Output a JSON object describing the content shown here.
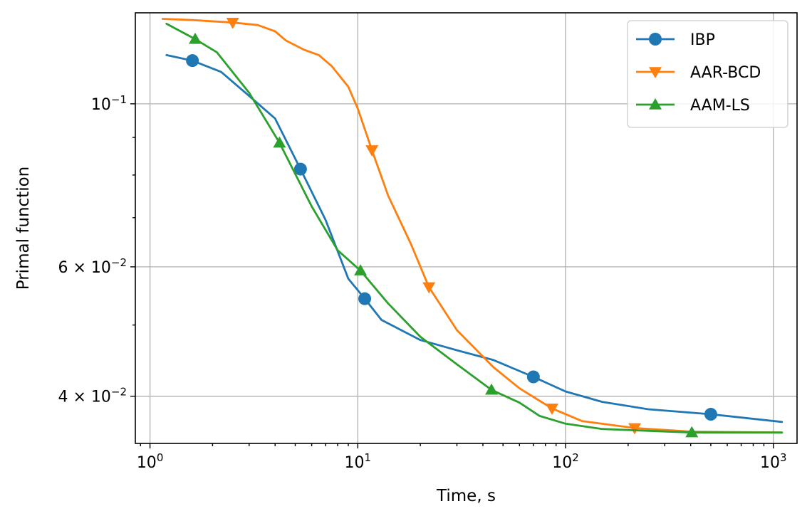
{
  "chart_data": {
    "type": "line",
    "title": "",
    "xlabel": "Time, s",
    "ylabel": "Primal function",
    "xscale": "log",
    "yscale": "log",
    "xlim": [
      0.85,
      1300
    ],
    "ylim": [
      0.0345,
      0.133
    ],
    "grid": true,
    "legend_position": "top-right",
    "x_ticks": [
      {
        "value": 1,
        "base": "10",
        "exp": "0"
      },
      {
        "value": 10,
        "base": "10",
        "exp": "1"
      },
      {
        "value": 100,
        "base": "10",
        "exp": "2"
      },
      {
        "value": 1000,
        "base": "10",
        "exp": "3"
      }
    ],
    "y_ticks": [
      {
        "value": 0.1,
        "mantissa": "",
        "base": "10",
        "exp": "−1"
      },
      {
        "value": 0.06,
        "mantissa": "6 × ",
        "base": "10",
        "exp": "−2"
      },
      {
        "value": 0.04,
        "mantissa": "4 × ",
        "base": "10",
        "exp": "−2"
      }
    ],
    "y_minor_ticks": [
      0.09,
      0.08,
      0.07,
      0.05
    ],
    "series": [
      {
        "name": "IBP",
        "color": "#1f77b4",
        "marker": "circle",
        "x": [
          1.2,
          1.6,
          2.2,
          3.0,
          4.0,
          5.3,
          7.0,
          9.0,
          10.8,
          13,
          20,
          30,
          45,
          70,
          100,
          150,
          250,
          500,
          1100
        ],
        "y": [
          0.1165,
          0.1145,
          0.1105,
          0.1025,
          0.0955,
          0.0815,
          0.0695,
          0.0578,
          0.0543,
          0.0508,
          0.0477,
          0.0462,
          0.0448,
          0.0425,
          0.0406,
          0.0393,
          0.0384,
          0.0378,
          0.0369
        ],
        "marker_x": [
          1.6,
          5.3,
          10.8,
          70,
          500
        ],
        "marker_y": [
          0.1145,
          0.0815,
          0.0543,
          0.0425,
          0.0378
        ]
      },
      {
        "name": "AAR-BCD",
        "color": "#ff7f0e",
        "marker": "triangle-down",
        "x": [
          1.15,
          1.6,
          2.5,
          3.3,
          4.0,
          4.5,
          5.5,
          6.5,
          7.5,
          9.0,
          10.0,
          11.7,
          14,
          18,
          22,
          30,
          45,
          60,
          86,
          120,
          215,
          400,
          1100
        ],
        "y": [
          0.1305,
          0.13,
          0.129,
          0.128,
          0.1255,
          0.122,
          0.1185,
          0.1165,
          0.1125,
          0.1055,
          0.0985,
          0.0865,
          0.075,
          0.0645,
          0.0563,
          0.0492,
          0.0438,
          0.041,
          0.0385,
          0.037,
          0.0362,
          0.0358,
          0.0357
        ],
        "marker_x": [
          2.5,
          11.7,
          22,
          86,
          215
        ],
        "marker_y": [
          0.129,
          0.0865,
          0.0563,
          0.0385,
          0.0362
        ]
      },
      {
        "name": "AAM-LS",
        "color": "#2ca02c",
        "marker": "triangle-up",
        "x": [
          1.2,
          1.65,
          2.1,
          3.0,
          4.2,
          6.0,
          8.0,
          10.3,
          14,
          20,
          30,
          44,
          60,
          75,
          100,
          150,
          405,
          1100
        ],
        "y": [
          0.1285,
          0.1225,
          0.1175,
          0.1035,
          0.0885,
          0.0725,
          0.0632,
          0.0593,
          0.0535,
          0.0482,
          0.0442,
          0.0408,
          0.0392,
          0.0376,
          0.0367,
          0.0361,
          0.0357,
          0.0357
        ],
        "marker_x": [
          1.65,
          4.2,
          10.3,
          44,
          405
        ],
        "marker_y": [
          0.1225,
          0.0885,
          0.0593,
          0.0408,
          0.0357
        ]
      }
    ]
  }
}
